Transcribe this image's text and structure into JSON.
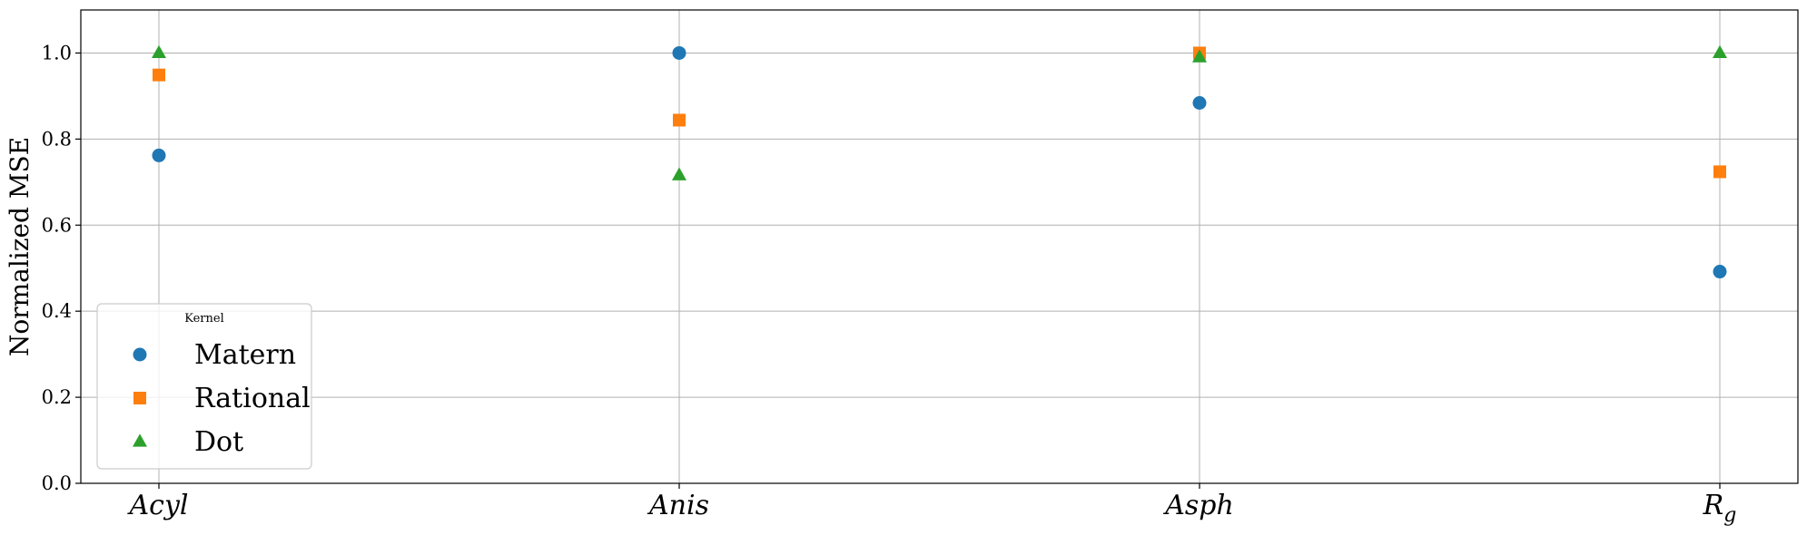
{
  "chart_data": {
    "type": "scatter",
    "categories": [
      "Acyl",
      "Anis",
      "Asph",
      "R"
    ],
    "category_subscripts": [
      "",
      "",
      "",
      "g"
    ],
    "ylabel": "Normalized MSE",
    "ylim": [
      0.0,
      1.1
    ],
    "yticks": [
      "0.0",
      "0.2",
      "0.4",
      "0.6",
      "0.8",
      "1.0"
    ],
    "grid": true,
    "legend": {
      "title": "Kernel",
      "placement": "lower-left"
    },
    "series": [
      {
        "name": "Matern",
        "color": "#1f77b4",
        "marker": "circle",
        "values": [
          0.762,
          1.0,
          0.884,
          0.492
        ]
      },
      {
        "name": "Rational",
        "color": "#ff7f0e",
        "marker": "square",
        "values": [
          0.949,
          0.844,
          1.0,
          0.724
        ]
      },
      {
        "name": "Dot",
        "color": "#2ca02c",
        "marker": "triangle",
        "values": [
          1.0,
          0.716,
          0.99,
          1.0
        ]
      }
    ]
  }
}
